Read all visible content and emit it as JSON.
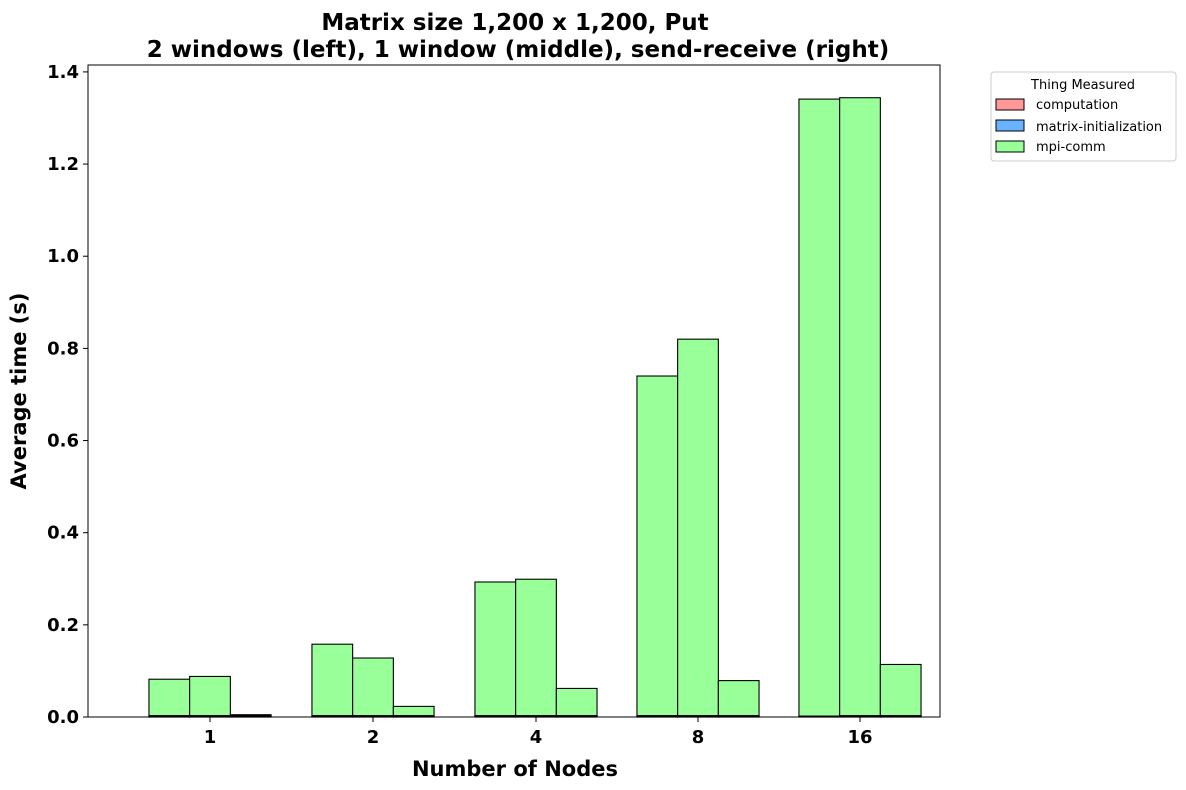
{
  "chart_data": {
    "type": "bar",
    "title": [
      "Matrix size 1,200 x 1,200, Put",
      "2 windows (left), 1 window (middle), send-receive (right)"
    ],
    "xlabel": "Number of Nodes",
    "ylabel": "Average time (s)",
    "categories": [
      "1",
      "2",
      "4",
      "8",
      "16"
    ],
    "ylim": [
      0,
      1.415
    ],
    "yticks": [
      "0.0",
      "0.2",
      "0.4",
      "0.6",
      "0.8",
      "1.0",
      "1.2",
      "1.4"
    ],
    "grid": false,
    "stacked": true,
    "groups_per_category": 3,
    "group_order": [
      "2 windows",
      "1 window",
      "send-receive"
    ],
    "legend": {
      "title": "Thing Measured",
      "placement": "outside-top-right",
      "entries": [
        {
          "name": "computation",
          "color": "#ff9896"
        },
        {
          "name": "matrix-initialization",
          "color": "#66b3ff"
        },
        {
          "name": "mpi-comm",
          "color": "#99ff99"
        }
      ]
    },
    "bars": [
      {
        "category": "1",
        "group": "2 windows",
        "computation": 0.001,
        "matrix-initialization": 0.002,
        "mpi-comm": 0.079
      },
      {
        "category": "1",
        "group": "1 window",
        "computation": 0.001,
        "matrix-initialization": 0.002,
        "mpi-comm": 0.085
      },
      {
        "category": "1",
        "group": "send-receive",
        "computation": 0.001,
        "matrix-initialization": 0.002,
        "mpi-comm": 0.002
      },
      {
        "category": "2",
        "group": "2 windows",
        "computation": 0.001,
        "matrix-initialization": 0.002,
        "mpi-comm": 0.155
      },
      {
        "category": "2",
        "group": "1 window",
        "computation": 0.001,
        "matrix-initialization": 0.002,
        "mpi-comm": 0.125
      },
      {
        "category": "2",
        "group": "send-receive",
        "computation": 0.001,
        "matrix-initialization": 0.002,
        "mpi-comm": 0.02
      },
      {
        "category": "4",
        "group": "2 windows",
        "computation": 0.001,
        "matrix-initialization": 0.002,
        "mpi-comm": 0.29
      },
      {
        "category": "4",
        "group": "1 window",
        "computation": 0.001,
        "matrix-initialization": 0.002,
        "mpi-comm": 0.296
      },
      {
        "category": "4",
        "group": "send-receive",
        "computation": 0.001,
        "matrix-initialization": 0.002,
        "mpi-comm": 0.059
      },
      {
        "category": "8",
        "group": "2 windows",
        "computation": 0.001,
        "matrix-initialization": 0.002,
        "mpi-comm": 0.737
      },
      {
        "category": "8",
        "group": "1 window",
        "computation": 0.001,
        "matrix-initialization": 0.002,
        "mpi-comm": 0.817
      },
      {
        "category": "8",
        "group": "send-receive",
        "computation": 0.001,
        "matrix-initialization": 0.002,
        "mpi-comm": 0.076
      },
      {
        "category": "16",
        "group": "2 windows",
        "computation": 0.001,
        "matrix-initialization": 0.001,
        "mpi-comm": 1.339
      },
      {
        "category": "16",
        "group": "1 window",
        "computation": 0.001,
        "matrix-initialization": 0.002,
        "mpi-comm": 1.341
      },
      {
        "category": "16",
        "group": "send-receive",
        "computation": 0.001,
        "matrix-initialization": 0.002,
        "mpi-comm": 0.111
      }
    ]
  }
}
